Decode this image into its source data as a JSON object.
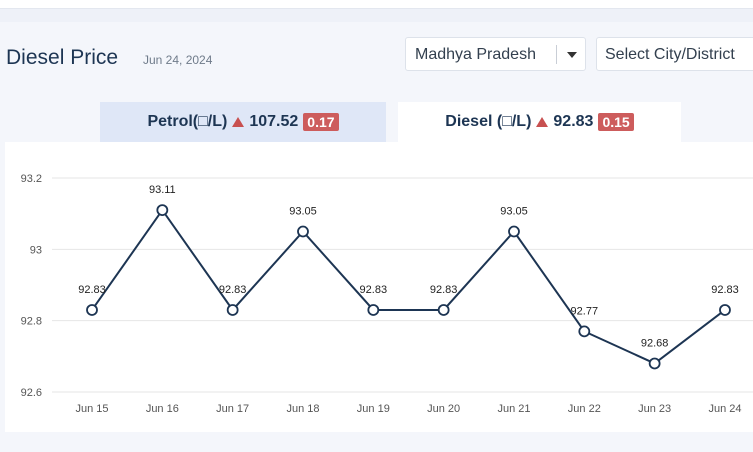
{
  "header": {
    "title": "Diesel Price",
    "date": "Jun 24, 2024",
    "state_select": "Madhya Pradesh",
    "city_select": "Select City/District"
  },
  "tabs": [
    {
      "label": "Petrol(□/L)",
      "price": "107.52",
      "change": "0.17"
    },
    {
      "label": "Diesel (□/L)",
      "price": "92.83",
      "change": "0.15"
    }
  ],
  "colors": {
    "line": "#1d3553",
    "up": "#c85050",
    "badge": "#cd5c5c"
  },
  "chart_data": {
    "type": "line",
    "categories": [
      "Jun 15",
      "Jun 16",
      "Jun 17",
      "Jun 18",
      "Jun 19",
      "Jun 20",
      "Jun 21",
      "Jun 22",
      "Jun 23",
      "Jun 24"
    ],
    "values": [
      92.83,
      93.11,
      92.83,
      93.05,
      92.83,
      92.83,
      93.05,
      92.77,
      92.68,
      92.83
    ],
    "data_labels": [
      "92.83",
      "93.11",
      "92.83",
      "93.05",
      "92.83",
      "92.83",
      "93.05",
      "92.77",
      "92.68",
      "92.83"
    ],
    "yticks": [
      "93.2",
      "93",
      "92.8",
      "92.6"
    ],
    "ylim": [
      92.6,
      93.2
    ],
    "grid": true,
    "title": "",
    "xlabel": "",
    "ylabel": ""
  }
}
